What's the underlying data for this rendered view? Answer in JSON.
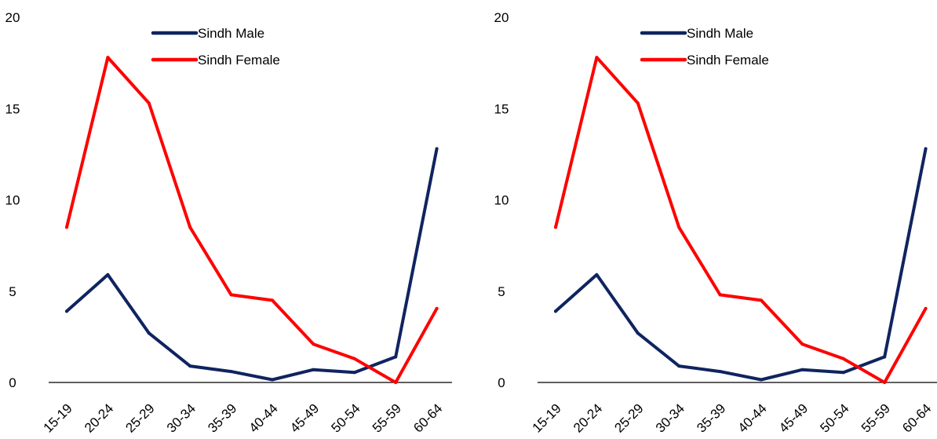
{
  "chart_data": [
    {
      "type": "line",
      "title": "",
      "xlabel": "",
      "ylabel": "",
      "categories": [
        "15-19",
        "20-24",
        "25-29",
        "30-34",
        "35-39",
        "40-44",
        "45-49",
        "50-54",
        "55-59",
        "60-64"
      ],
      "ylim": [
        0,
        20
      ],
      "yticks": [
        "0",
        "5",
        "10",
        "15",
        "20"
      ],
      "grid": false,
      "legend": "top-center",
      "series": [
        {
          "name": "Sindh Male",
          "color": "#0f2460",
          "values": [
            3.9,
            5.9,
            2.7,
            0.9,
            0.6,
            0.15,
            0.7,
            0.55,
            1.4,
            12.8
          ]
        },
        {
          "name": "Sindh Female",
          "color": "#ff0000",
          "values": [
            8.5,
            17.8,
            15.3,
            8.5,
            4.8,
            4.5,
            2.1,
            1.3,
            0.0,
            4.05
          ]
        }
      ]
    },
    {
      "type": "line",
      "title": "",
      "xlabel": "",
      "ylabel": "",
      "categories": [
        "15-19",
        "20-24",
        "25-29",
        "30-34",
        "35-39",
        "40-44",
        "45-49",
        "50-54",
        "55-59",
        "60-64"
      ],
      "ylim": [
        0,
        20
      ],
      "yticks": [
        "0",
        "5",
        "10",
        "15",
        "20"
      ],
      "grid": false,
      "legend": "top-center",
      "series": [
        {
          "name": "Sindh Male",
          "color": "#0f2460",
          "values": [
            3.9,
            5.9,
            2.7,
            0.9,
            0.6,
            0.15,
            0.7,
            0.55,
            1.4,
            12.8
          ]
        },
        {
          "name": "Sindh Female",
          "color": "#ff0000",
          "values": [
            8.5,
            17.8,
            15.3,
            8.5,
            4.8,
            4.5,
            2.1,
            1.3,
            0.0,
            4.05
          ]
        }
      ]
    }
  ]
}
